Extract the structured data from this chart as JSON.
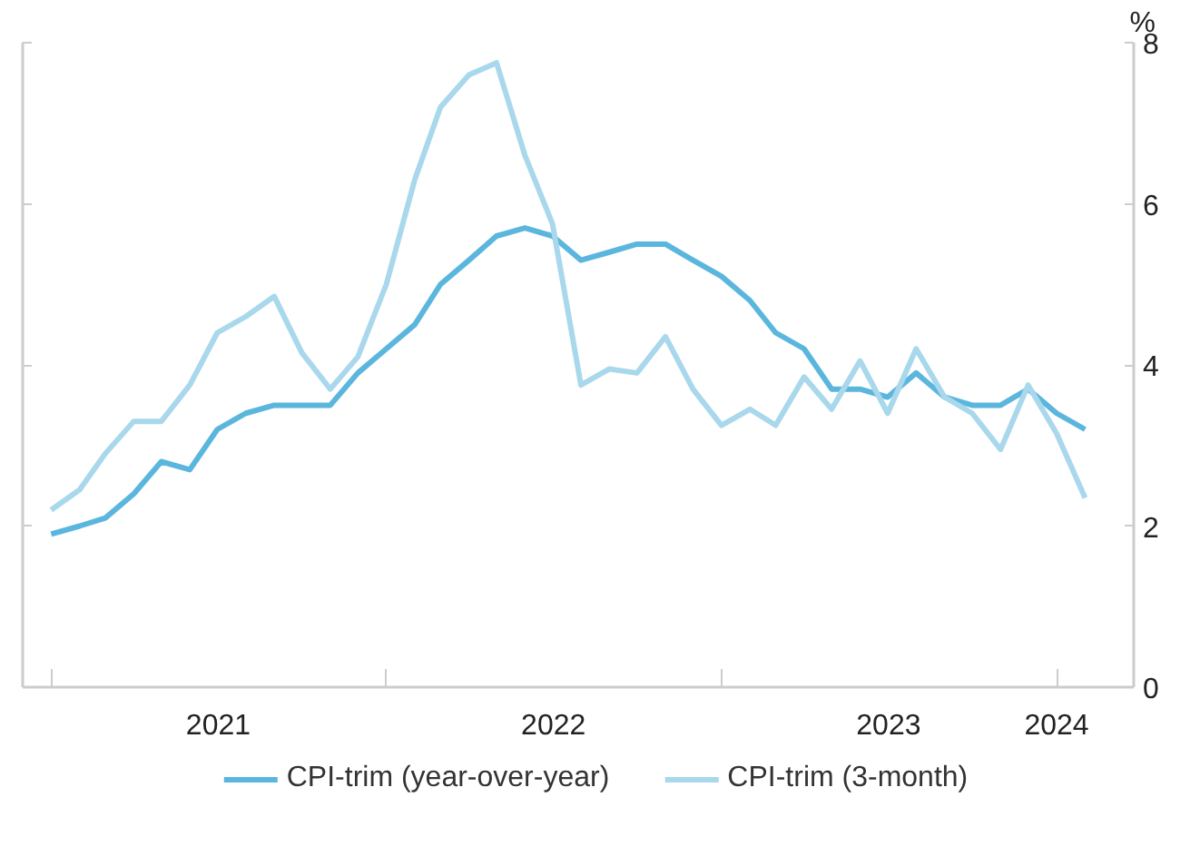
{
  "chart_data": {
    "type": "line",
    "ylabel": "%",
    "x": [
      "2021-01",
      "2021-02",
      "2021-03",
      "2021-04",
      "2021-05",
      "2021-06",
      "2021-07",
      "2021-08",
      "2021-09",
      "2021-10",
      "2021-11",
      "2021-12",
      "2022-01",
      "2022-02",
      "2022-03",
      "2022-04",
      "2022-05",
      "2022-06",
      "2022-07",
      "2022-08",
      "2022-09",
      "2022-10",
      "2022-11",
      "2022-12",
      "2023-01",
      "2023-02",
      "2023-03",
      "2023-04",
      "2023-05",
      "2023-06",
      "2023-07",
      "2023-08",
      "2023-09",
      "2023-10",
      "2023-11",
      "2023-12",
      "2024-01",
      "2024-02"
    ],
    "series": [
      {
        "name": "CPI-trim (year-over-year)",
        "color": "#5bb6dd",
        "values": [
          1.9,
          2.0,
          2.1,
          2.4,
          2.8,
          2.7,
          3.2,
          3.4,
          3.5,
          3.5,
          3.5,
          3.9,
          4.2,
          4.5,
          5.0,
          5.3,
          5.6,
          5.7,
          5.6,
          5.3,
          5.4,
          5.5,
          5.5,
          5.3,
          5.1,
          4.8,
          4.4,
          4.2,
          3.7,
          3.7,
          3.6,
          3.9,
          3.6,
          3.5,
          3.5,
          3.7,
          3.4,
          3.2
        ]
      },
      {
        "name": "CPI-trim (3-month)",
        "color": "#a9d8ec",
        "values": [
          2.2,
          2.45,
          2.9,
          3.3,
          3.3,
          3.75,
          4.4,
          4.6,
          4.85,
          4.15,
          3.7,
          4.1,
          5.0,
          6.3,
          7.2,
          7.6,
          7.75,
          6.6,
          5.75,
          3.75,
          3.95,
          3.9,
          4.35,
          3.7,
          3.25,
          3.45,
          3.25,
          3.85,
          3.45,
          4.05,
          3.4,
          4.2,
          3.6,
          3.4,
          2.95,
          3.75,
          3.15,
          2.35
        ]
      }
    ],
    "xlim": [
      "2020-12-01",
      "2024-03-25"
    ],
    "xticks": [
      {
        "value": "2021-07-02",
        "label": "2021"
      },
      {
        "value": "2022-07-02",
        "label": "2022"
      },
      {
        "value": "2023-07-02",
        "label": "2023"
      },
      {
        "value": "2024-01-01",
        "label": "2024"
      },
      {
        "value": "2021-01-01",
        "label": null
      },
      {
        "value": "2022-01-01",
        "label": null
      },
      {
        "value": "2023-01-01",
        "label": null
      },
      {
        "value": "2024-01-01",
        "label": null
      }
    ],
    "ylim": [
      0,
      8
    ],
    "yticks": [
      0,
      2,
      4,
      6,
      8
    ],
    "grid": false,
    "legend": "bottom",
    "line_style": "solid",
    "marker": "none"
  }
}
